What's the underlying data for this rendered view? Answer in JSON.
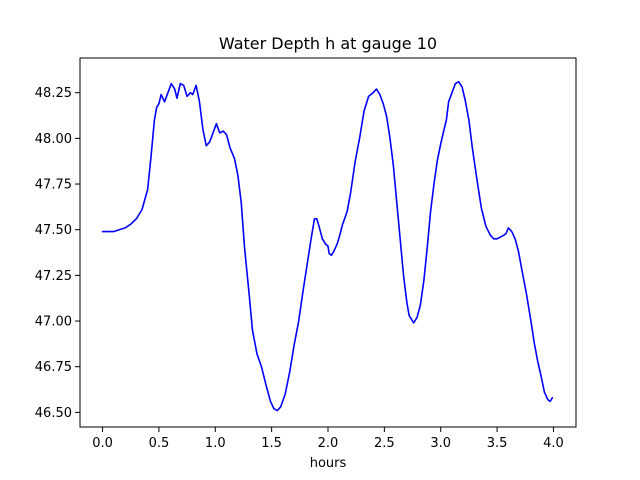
{
  "chart_data": {
    "type": "line",
    "title": "Water Depth h at gauge 10",
    "xlabel": "hours",
    "ylabel": "",
    "xlim": [
      -0.2,
      4.2
    ],
    "ylim": [
      46.42,
      48.44
    ],
    "grid": false,
    "legend": "none",
    "xticks": [
      {
        "value": 0.0,
        "label": "0.0"
      },
      {
        "value": 0.5,
        "label": "0.5"
      },
      {
        "value": 1.0,
        "label": "1.0"
      },
      {
        "value": 1.5,
        "label": "1.5"
      },
      {
        "value": 2.0,
        "label": "2.0"
      },
      {
        "value": 2.5,
        "label": "2.5"
      },
      {
        "value": 3.0,
        "label": "3.0"
      },
      {
        "value": 3.5,
        "label": "3.5"
      },
      {
        "value": 4.0,
        "label": "4.0"
      }
    ],
    "yticks": [
      {
        "value": 46.5,
        "label": "46.50"
      },
      {
        "value": 46.75,
        "label": "46.75"
      },
      {
        "value": 47.0,
        "label": "47.00"
      },
      {
        "value": 47.25,
        "label": "47.25"
      },
      {
        "value": 47.5,
        "label": "47.50"
      },
      {
        "value": 47.75,
        "label": "47.75"
      },
      {
        "value": 48.0,
        "label": "48.00"
      },
      {
        "value": 48.25,
        "label": "48.25"
      }
    ],
    "series": [
      {
        "color": "#0000ff",
        "points": [
          [
            0.0,
            47.49
          ],
          [
            0.1,
            47.49
          ],
          [
            0.2,
            47.51
          ],
          [
            0.25,
            47.53
          ],
          [
            0.3,
            47.56
          ],
          [
            0.35,
            47.61
          ],
          [
            0.4,
            47.72
          ],
          [
            0.43,
            47.9
          ],
          [
            0.46,
            48.1
          ],
          [
            0.48,
            48.17
          ],
          [
            0.5,
            48.19
          ],
          [
            0.52,
            48.24
          ],
          [
            0.55,
            48.2
          ],
          [
            0.58,
            48.25
          ],
          [
            0.61,
            48.3
          ],
          [
            0.64,
            48.27
          ],
          [
            0.66,
            48.22
          ],
          [
            0.69,
            48.3
          ],
          [
            0.72,
            48.29
          ],
          [
            0.75,
            48.23
          ],
          [
            0.78,
            48.25
          ],
          [
            0.8,
            48.24
          ],
          [
            0.83,
            48.29
          ],
          [
            0.86,
            48.2
          ],
          [
            0.89,
            48.05
          ],
          [
            0.92,
            47.96
          ],
          [
            0.95,
            47.98
          ],
          [
            0.98,
            48.03
          ],
          [
            1.01,
            48.08
          ],
          [
            1.04,
            48.03
          ],
          [
            1.07,
            48.04
          ],
          [
            1.1,
            48.02
          ],
          [
            1.13,
            47.95
          ],
          [
            1.17,
            47.89
          ],
          [
            1.2,
            47.8
          ],
          [
            1.23,
            47.65
          ],
          [
            1.26,
            47.4
          ],
          [
            1.3,
            47.15
          ],
          [
            1.33,
            46.95
          ],
          [
            1.37,
            46.82
          ],
          [
            1.41,
            46.75
          ],
          [
            1.45,
            46.65
          ],
          [
            1.49,
            46.56
          ],
          [
            1.52,
            46.52
          ],
          [
            1.55,
            46.51
          ],
          [
            1.58,
            46.53
          ],
          [
            1.62,
            46.6
          ],
          [
            1.66,
            46.72
          ],
          [
            1.7,
            46.87
          ],
          [
            1.74,
            47.0
          ],
          [
            1.78,
            47.17
          ],
          [
            1.82,
            47.33
          ],
          [
            1.85,
            47.45
          ],
          [
            1.88,
            47.56
          ],
          [
            1.9,
            47.56
          ],
          [
            1.92,
            47.52
          ],
          [
            1.95,
            47.45
          ],
          [
            1.98,
            47.42
          ],
          [
            2.0,
            47.41
          ],
          [
            2.01,
            47.37
          ],
          [
            2.03,
            47.36
          ],
          [
            2.05,
            47.38
          ],
          [
            2.08,
            47.42
          ],
          [
            2.1,
            47.46
          ],
          [
            2.13,
            47.53
          ],
          [
            2.17,
            47.6
          ],
          [
            2.2,
            47.7
          ],
          [
            2.24,
            47.87
          ],
          [
            2.28,
            48.0
          ],
          [
            2.32,
            48.15
          ],
          [
            2.36,
            48.23
          ],
          [
            2.4,
            48.25
          ],
          [
            2.43,
            48.27
          ],
          [
            2.46,
            48.24
          ],
          [
            2.49,
            48.19
          ],
          [
            2.52,
            48.12
          ],
          [
            2.55,
            48.0
          ],
          [
            2.58,
            47.85
          ],
          [
            2.61,
            47.65
          ],
          [
            2.64,
            47.45
          ],
          [
            2.67,
            47.25
          ],
          [
            2.7,
            47.1
          ],
          [
            2.72,
            47.03
          ],
          [
            2.74,
            47.01
          ],
          [
            2.76,
            46.99
          ],
          [
            2.79,
            47.02
          ],
          [
            2.82,
            47.09
          ],
          [
            2.85,
            47.22
          ],
          [
            2.88,
            47.4
          ],
          [
            2.91,
            47.6
          ],
          [
            2.94,
            47.75
          ],
          [
            2.97,
            47.88
          ],
          [
            3.0,
            47.97
          ],
          [
            3.03,
            48.05
          ],
          [
            3.05,
            48.1
          ],
          [
            3.07,
            48.2
          ],
          [
            3.1,
            48.25
          ],
          [
            3.13,
            48.3
          ],
          [
            3.16,
            48.31
          ],
          [
            3.19,
            48.28
          ],
          [
            3.22,
            48.2
          ],
          [
            3.25,
            48.1
          ],
          [
            3.28,
            47.95
          ],
          [
            3.32,
            47.78
          ],
          [
            3.36,
            47.62
          ],
          [
            3.4,
            47.52
          ],
          [
            3.44,
            47.47
          ],
          [
            3.47,
            47.45
          ],
          [
            3.5,
            47.45
          ],
          [
            3.53,
            47.46
          ],
          [
            3.56,
            47.47
          ],
          [
            3.58,
            47.48
          ],
          [
            3.6,
            47.51
          ],
          [
            3.63,
            47.49
          ],
          [
            3.66,
            47.45
          ],
          [
            3.69,
            47.38
          ],
          [
            3.72,
            47.28
          ],
          [
            3.76,
            47.15
          ],
          [
            3.8,
            47.0
          ],
          [
            3.83,
            46.88
          ],
          [
            3.86,
            46.78
          ],
          [
            3.89,
            46.7
          ],
          [
            3.92,
            46.61
          ],
          [
            3.95,
            46.57
          ],
          [
            3.97,
            46.56
          ],
          [
            3.99,
            46.58
          ]
        ]
      }
    ]
  }
}
